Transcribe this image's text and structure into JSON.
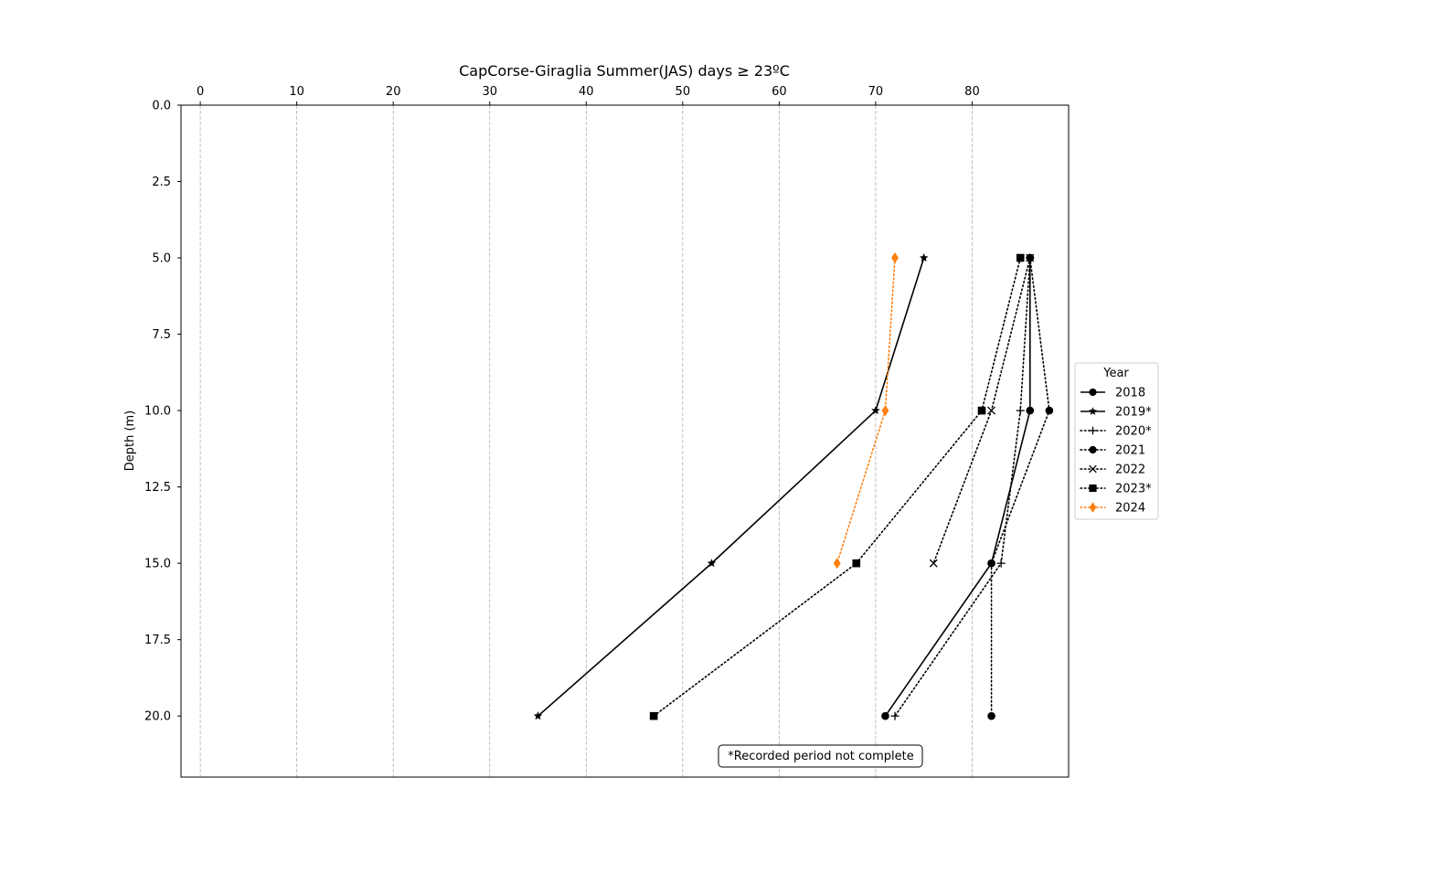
{
  "chart_data": {
    "type": "line",
    "title": "CapCorse-Giraglia Summer(JAS) days ≥ 23ºC",
    "xlabel": "",
    "ylabel": "Depth (m)",
    "xlim": [
      -2,
      90
    ],
    "ylim": [
      22,
      0
    ],
    "x_axis_position": "top",
    "y_axis_inverted": true,
    "x_ticks": [
      0,
      10,
      20,
      30,
      40,
      50,
      60,
      70,
      80
    ],
    "x_tick_labels": [
      "0",
      "10",
      "20",
      "30",
      "40",
      "50",
      "60",
      "70",
      "80"
    ],
    "y_ticks": [
      0,
      2.5,
      5,
      7.5,
      10,
      12.5,
      15,
      17.5,
      20
    ],
    "y_tick_labels": [
      "0.0",
      "2.5",
      "5.0",
      "7.5",
      "10.0",
      "12.5",
      "15.0",
      "17.5",
      "20.0"
    ],
    "grid": "vertical dashed",
    "legend": {
      "title": "Year",
      "placement": "right, outside plot"
    },
    "annotation": "*Recorded period not complete",
    "series": [
      {
        "name": "2018",
        "color": "#000000",
        "linestyle": "solid",
        "marker": "circle",
        "points": [
          [
            86,
            5
          ],
          [
            86,
            10
          ],
          [
            82,
            15
          ],
          [
            71,
            20
          ]
        ]
      },
      {
        "name": "2019*",
        "color": "#000000",
        "linestyle": "solid",
        "marker": "star",
        "points": [
          [
            75,
            5
          ],
          [
            70,
            10
          ],
          [
            53,
            15
          ],
          [
            35,
            20
          ]
        ]
      },
      {
        "name": "2020*",
        "color": "#000000",
        "linestyle": "dotted",
        "marker": "plus",
        "points": [
          [
            86,
            5
          ],
          [
            85,
            10
          ],
          [
            83,
            15
          ],
          [
            72,
            20
          ]
        ]
      },
      {
        "name": "2021",
        "color": "#000000",
        "linestyle": "dotted",
        "marker": "circle",
        "points": [
          [
            86,
            5
          ],
          [
            88,
            10
          ],
          [
            82,
            15
          ],
          [
            82,
            20
          ]
        ]
      },
      {
        "name": "2022",
        "color": "#000000",
        "linestyle": "dotted",
        "marker": "x",
        "points": [
          [
            86,
            5
          ],
          [
            82,
            10
          ],
          [
            76,
            15
          ]
        ]
      },
      {
        "name": "2023*",
        "color": "#000000",
        "linestyle": "dotted",
        "marker": "square",
        "points": [
          [
            85,
            5
          ],
          [
            81,
            10
          ],
          [
            68,
            15
          ],
          [
            47,
            20
          ]
        ]
      },
      {
        "name": "2024",
        "color": "#ff7f0e",
        "linestyle": "dotted",
        "marker": "diamond",
        "points": [
          [
            72,
            5
          ],
          [
            71,
            10
          ],
          [
            66,
            15
          ]
        ]
      }
    ]
  }
}
